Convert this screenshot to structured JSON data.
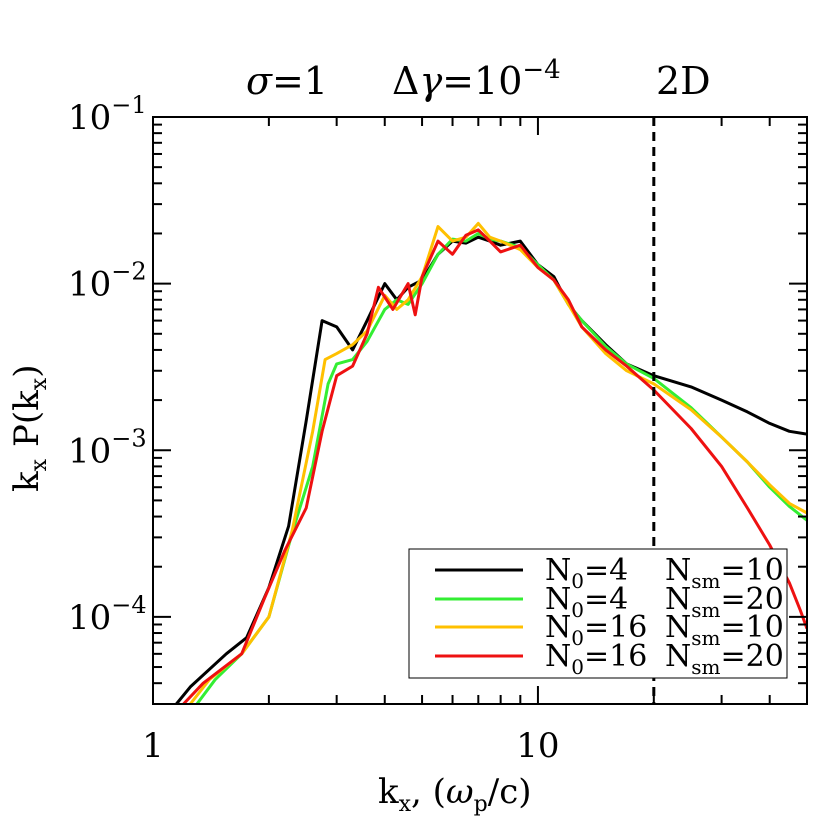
{
  "chart_data": {
    "type": "line",
    "annotations": {
      "sigma": "1",
      "delta_gamma_base": "10",
      "delta_gamma_exp": "−4",
      "dim": "2D"
    },
    "xlabel": {
      "main": "k",
      "sub": "x",
      "unit_prefix": ", (",
      "omega": "ω",
      "omega_sub": "p",
      "unit_suffix": "/c)"
    },
    "ylabel": {
      "k": "k",
      "k_sub": "x",
      "P": "P(k",
      "P_sub": "x",
      "close": ")"
    },
    "xscale": "log",
    "yscale": "log",
    "xlim": [
      1,
      50
    ],
    "ylim": [
      3e-05,
      0.1
    ],
    "xticks": [
      {
        "value": 1,
        "label": "1"
      },
      {
        "value": 10,
        "label": "10"
      }
    ],
    "yticks": [
      {
        "value": 0.1,
        "base": "10",
        "exp": "−1"
      },
      {
        "value": 0.01,
        "base": "10",
        "exp": "−2"
      },
      {
        "value": 0.001,
        "base": "10",
        "exp": "−3"
      },
      {
        "value": 0.0001,
        "base": "10",
        "exp": "−4"
      }
    ],
    "vline": {
      "x": 20,
      "style": "dashed"
    },
    "legend": {
      "position": "bottom-right",
      "entries": [
        {
          "n0": "4",
          "nsm": "10",
          "color": "#000000"
        },
        {
          "n0": "4",
          "nsm": "20",
          "color": "#33ee33"
        },
        {
          "n0": "16",
          "nsm": "10",
          "color": "#ffc000"
        },
        {
          "n0": "16",
          "nsm": "20",
          "color": "#ee1111"
        }
      ]
    },
    "series": [
      {
        "color": "#000000",
        "points": [
          [
            1.15,
            3e-05
          ],
          [
            1.25,
            3.8e-05
          ],
          [
            1.55,
            6e-05
          ],
          [
            1.75,
            7.5e-05
          ],
          [
            2.0,
            0.00015
          ],
          [
            2.25,
            0.00035
          ],
          [
            2.5,
            0.0015
          ],
          [
            2.75,
            0.006
          ],
          [
            3.0,
            0.0055
          ],
          [
            3.3,
            0.004
          ],
          [
            3.6,
            0.006
          ],
          [
            4.0,
            0.01
          ],
          [
            4.3,
            0.008
          ],
          [
            4.6,
            0.0095
          ],
          [
            5.0,
            0.0105
          ],
          [
            5.5,
            0.015
          ],
          [
            6.0,
            0.018
          ],
          [
            6.5,
            0.0175
          ],
          [
            7.0,
            0.019
          ],
          [
            7.5,
            0.018
          ],
          [
            8.0,
            0.017
          ],
          [
            9.0,
            0.018
          ],
          [
            10.0,
            0.013
          ],
          [
            11.0,
            0.011
          ],
          [
            12.0,
            0.0075
          ],
          [
            13.0,
            0.006
          ],
          [
            15.0,
            0.0043
          ],
          [
            17.0,
            0.0033
          ],
          [
            20.0,
            0.0028
          ],
          [
            25.0,
            0.0024
          ],
          [
            30.0,
            0.002
          ],
          [
            35.0,
            0.0017
          ],
          [
            40.0,
            0.00145
          ],
          [
            45.0,
            0.0013
          ],
          [
            50.0,
            0.00125
          ]
        ]
      },
      {
        "color": "#33ee33",
        "points": [
          [
            1.3,
            3e-05
          ],
          [
            1.45,
            4.2e-05
          ],
          [
            1.7,
            6e-05
          ],
          [
            2.0,
            0.0001
          ],
          [
            2.3,
            0.00032
          ],
          [
            2.6,
            0.0008
          ],
          [
            2.85,
            0.0025
          ],
          [
            3.0,
            0.0033
          ],
          [
            3.3,
            0.0035
          ],
          [
            3.6,
            0.0045
          ],
          [
            4.0,
            0.007
          ],
          [
            4.3,
            0.008
          ],
          [
            4.6,
            0.0075
          ],
          [
            5.0,
            0.01
          ],
          [
            5.5,
            0.015
          ],
          [
            6.0,
            0.0185
          ],
          [
            6.5,
            0.018
          ],
          [
            7.0,
            0.02
          ],
          [
            7.5,
            0.0185
          ],
          [
            8.0,
            0.018
          ],
          [
            9.0,
            0.0165
          ],
          [
            10.0,
            0.013
          ],
          [
            11.0,
            0.0105
          ],
          [
            12.0,
            0.0075
          ],
          [
            13.0,
            0.006
          ],
          [
            15.0,
            0.0042
          ],
          [
            17.0,
            0.0033
          ],
          [
            20.0,
            0.0027
          ],
          [
            25.0,
            0.0018
          ],
          [
            30.0,
            0.0012
          ],
          [
            35.0,
            0.00085
          ],
          [
            40.0,
            0.0006
          ],
          [
            45.0,
            0.00046
          ],
          [
            50.0,
            0.00038
          ]
        ]
      },
      {
        "color": "#ffc000",
        "points": [
          [
            1.25,
            3e-05
          ],
          [
            1.4,
            4.2e-05
          ],
          [
            1.7,
            6e-05
          ],
          [
            2.0,
            0.0001
          ],
          [
            2.3,
            0.00033
          ],
          [
            2.6,
            0.0013
          ],
          [
            2.8,
            0.0035
          ],
          [
            3.0,
            0.0038
          ],
          [
            3.3,
            0.0043
          ],
          [
            3.6,
            0.0052
          ],
          [
            4.0,
            0.0085
          ],
          [
            4.3,
            0.007
          ],
          [
            4.6,
            0.008
          ],
          [
            5.0,
            0.011
          ],
          [
            5.5,
            0.022
          ],
          [
            6.0,
            0.018
          ],
          [
            6.5,
            0.019
          ],
          [
            7.0,
            0.023
          ],
          [
            7.5,
            0.019
          ],
          [
            8.0,
            0.018
          ],
          [
            9.0,
            0.016
          ],
          [
            10.0,
            0.0125
          ],
          [
            11.0,
            0.0105
          ],
          [
            12.0,
            0.0075
          ],
          [
            13.0,
            0.0055
          ],
          [
            15.0,
            0.0038
          ],
          [
            17.0,
            0.003
          ],
          [
            20.0,
            0.0025
          ],
          [
            25.0,
            0.00175
          ],
          [
            30.0,
            0.0012
          ],
          [
            35.0,
            0.00085
          ],
          [
            40.0,
            0.00062
          ],
          [
            45.0,
            0.00048
          ],
          [
            50.0,
            0.00042
          ]
        ]
      },
      {
        "color": "#ee1111",
        "points": [
          [
            1.2,
            3e-05
          ],
          [
            1.35,
            4e-05
          ],
          [
            1.7,
            6e-05
          ],
          [
            1.95,
            0.00013
          ],
          [
            2.2,
            0.00025
          ],
          [
            2.5,
            0.00045
          ],
          [
            2.75,
            0.0013
          ],
          [
            3.0,
            0.0028
          ],
          [
            3.3,
            0.0032
          ],
          [
            3.6,
            0.005
          ],
          [
            3.85,
            0.0095
          ],
          [
            4.2,
            0.007
          ],
          [
            4.6,
            0.01
          ],
          [
            4.8,
            0.0065
          ],
          [
            5.0,
            0.011
          ],
          [
            5.5,
            0.018
          ],
          [
            6.0,
            0.015
          ],
          [
            6.5,
            0.0195
          ],
          [
            7.0,
            0.021
          ],
          [
            7.5,
            0.018
          ],
          [
            8.0,
            0.0155
          ],
          [
            9.0,
            0.017
          ],
          [
            10.0,
            0.0125
          ],
          [
            11.0,
            0.0105
          ],
          [
            12.0,
            0.008
          ],
          [
            13.0,
            0.0055
          ],
          [
            15.0,
            0.004
          ],
          [
            17.0,
            0.0032
          ],
          [
            20.0,
            0.0023
          ],
          [
            25.0,
            0.00135
          ],
          [
            30.0,
            0.0008
          ],
          [
            35.0,
            0.00045
          ],
          [
            40.0,
            0.00027
          ],
          [
            45.0,
            0.00016
          ],
          [
            48.0,
            0.00011
          ],
          [
            50.0,
            8.5e-05
          ]
        ]
      }
    ]
  }
}
